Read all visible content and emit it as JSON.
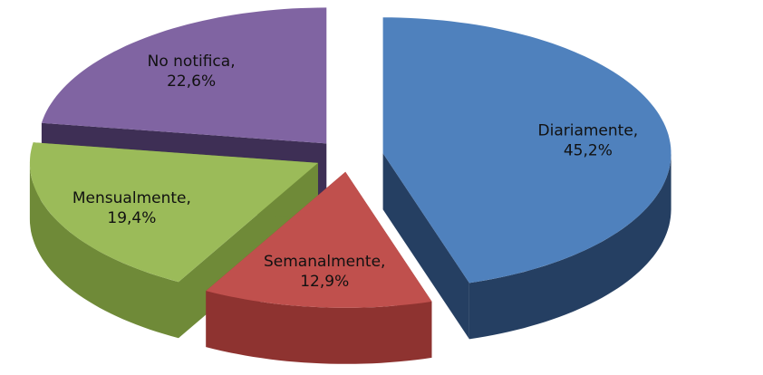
{
  "chart_data": {
    "type": "pie",
    "style": "3d-exploded",
    "categories": [
      "Diariamente,",
      "Semanalmente,",
      "Mensualmente,",
      "No notifica,"
    ],
    "values": [
      45.2,
      12.9,
      19.4,
      22.6
    ],
    "value_labels": [
      "45,2%",
      "12,9%",
      "19,4%",
      "22,6%"
    ],
    "colors": [
      "#4f81bd",
      "#c0504d",
      "#9bbb59",
      "#8064a2"
    ],
    "side_colors": [
      "#253f62",
      "#8e3330",
      "#6f8a38",
      "#3e2f55"
    ]
  }
}
